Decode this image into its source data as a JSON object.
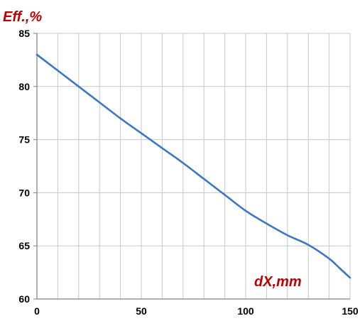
{
  "chart_data": {
    "type": "line",
    "title": "",
    "ylabel": "Eff.,%",
    "xlabel": "dX,mm",
    "xlim": [
      0,
      150
    ],
    "ylim": [
      60,
      85
    ],
    "x_ticks": [
      0,
      50,
      100,
      150
    ],
    "x_tick_labels": [
      "0",
      "50",
      "100",
      "150"
    ],
    "y_ticks": [
      60,
      65,
      70,
      75,
      80,
      85
    ],
    "y_tick_labels": [
      "60",
      "65",
      "70",
      "75",
      "80",
      "85"
    ],
    "x_gridlines_every": 10,
    "y_gridlines_every": 5,
    "grid": true,
    "legend": "none",
    "series": [
      {
        "color": "#3a78c2",
        "x": [
          0,
          10,
          20,
          30,
          40,
          50,
          60,
          70,
          80,
          90,
          100,
          110,
          120,
          130,
          140,
          145,
          150
        ],
        "y": [
          83.0,
          81.5,
          80.0,
          78.5,
          77.0,
          75.6,
          74.2,
          72.8,
          71.3,
          69.8,
          68.3,
          67.1,
          66.0,
          65.1,
          63.8,
          62.9,
          62.0
        ]
      }
    ],
    "label_color": "#c00000"
  }
}
